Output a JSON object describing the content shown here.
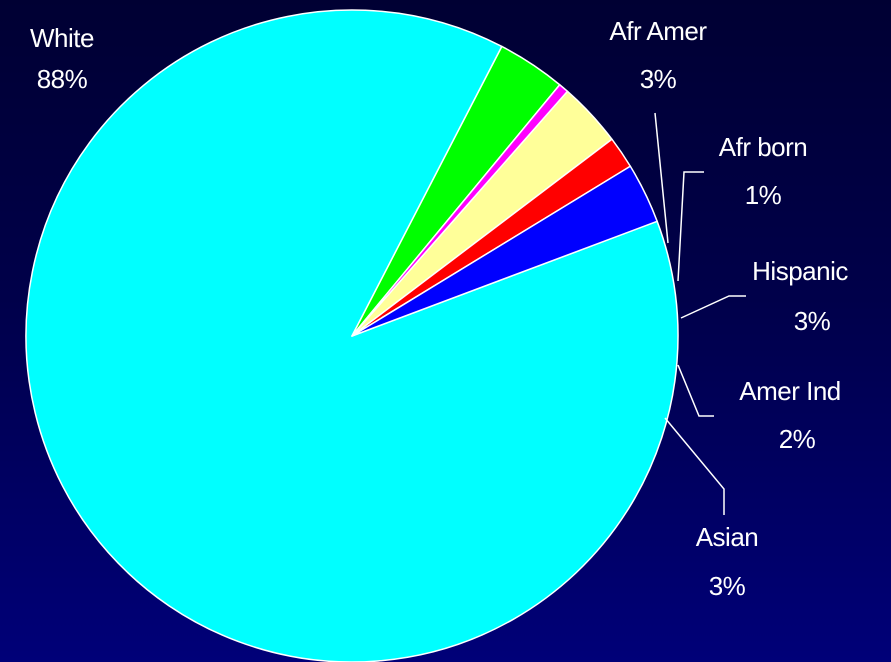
{
  "chart_data": {
    "type": "pie",
    "title": "",
    "slices": [
      {
        "name": "White",
        "display": "88%",
        "value": 88.5,
        "color": "#00ffff"
      },
      {
        "name": "Afr Amer",
        "display": "3%",
        "value": 3.4,
        "color": "#00ff00"
      },
      {
        "name": "Afr born",
        "display": "1%",
        "value": 0.5,
        "color": "#ff00ff"
      },
      {
        "name": "Hispanic",
        "display": "3%",
        "value": 3.2,
        "color": "#ffff99"
      },
      {
        "name": "Amer Ind",
        "display": "2%",
        "value": 1.6,
        "color": "#ff0000"
      },
      {
        "name": "Asian",
        "display": "3%",
        "value": 3.0,
        "color": "#0000ff"
      }
    ],
    "legend": "none",
    "labels": "outside-with-leader-lines"
  }
}
